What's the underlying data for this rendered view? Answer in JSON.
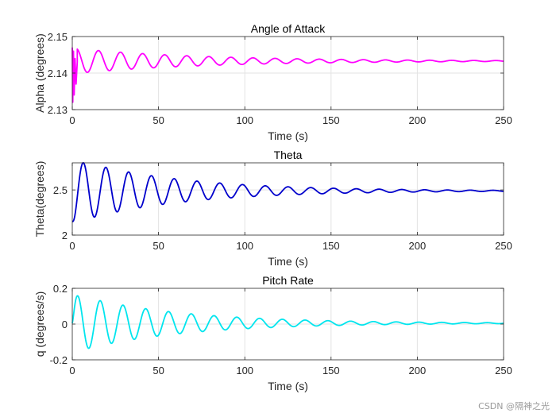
{
  "watermark": "CSDN @隔神之光",
  "chart_data": [
    {
      "type": "line",
      "title": "Angle of Attack",
      "xlabel": "Time (s)",
      "ylabel": "Alpha (degrees)",
      "xlim": [
        0,
        250
      ],
      "ylim": [
        2.13,
        2.15
      ],
      "xticks": [
        0,
        50,
        100,
        150,
        200,
        250
      ],
      "xtick_labels": [
        "0",
        "50",
        "100",
        "150",
        "200",
        "250"
      ],
      "yticks": [
        2.13,
        2.14,
        2.15
      ],
      "ytick_labels": [
        "2.13",
        "2.14",
        "2.15"
      ],
      "grid": true,
      "color": "#ff00ff",
      "series_model": {
        "name": "alpha",
        "mean": 2.1433,
        "amplitude": 0.0035,
        "decay_time": 75,
        "period": 12.8,
        "phase": 0.4
      },
      "transient": [
        [
          0,
          2.147
        ],
        [
          0.3,
          2.132
        ],
        [
          0.7,
          2.146
        ],
        [
          1.1,
          2.134
        ],
        [
          1.6,
          2.144
        ],
        [
          2.2,
          2.137
        ],
        [
          2.9,
          2.143
        ]
      ]
    },
    {
      "type": "line",
      "title": "Theta",
      "xlabel": "Time (s)",
      "ylabel": "Theta(degrees)",
      "xlim": [
        0,
        250
      ],
      "ylim": [
        2,
        2.8
      ],
      "xticks": [
        0,
        50,
        100,
        150,
        200,
        250
      ],
      "xtick_labels": [
        "0",
        "50",
        "100",
        "150",
        "200",
        "250"
      ],
      "yticks": [
        2,
        2.5
      ],
      "ytick_labels": [
        "2",
        "2.5"
      ],
      "grid": true,
      "color": "#0000cc",
      "series_model": {
        "name": "theta",
        "start": 2.15,
        "mean": 2.49,
        "amplitude": 0.36,
        "decay_time": 60,
        "period": 13.2,
        "peak_time": 6.3
      }
    },
    {
      "type": "line",
      "title": "Pitch Rate",
      "xlabel": "Time (s)",
      "ylabel": "q (degrees/s)",
      "xlim": [
        0,
        250
      ],
      "ylim": [
        -0.2,
        0.2
      ],
      "xticks": [
        0,
        50,
        100,
        150,
        200,
        250
      ],
      "xtick_labels": [
        "0",
        "50",
        "100",
        "150",
        "200",
        "250"
      ],
      "yticks": [
        -0.2,
        0,
        0.2
      ],
      "ytick_labels": [
        "-0.2",
        "0",
        "0.2"
      ],
      "grid": true,
      "color": "#00e5ee",
      "series_model": {
        "name": "q",
        "mean": 0.005,
        "amplitude": 0.165,
        "decay_time": 60,
        "period": 13.2,
        "peak_time": 3.0
      }
    }
  ]
}
